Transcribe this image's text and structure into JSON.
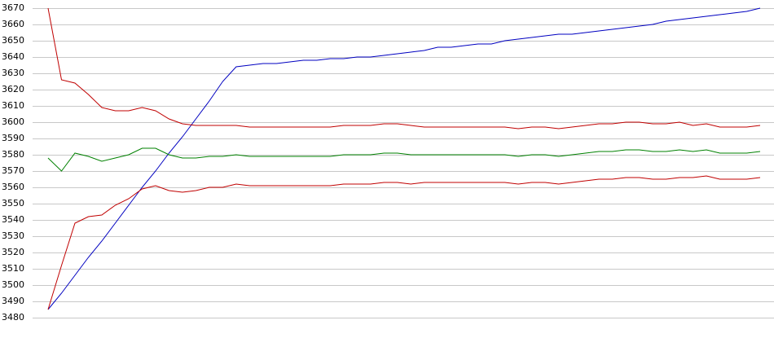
{
  "chart_data": {
    "type": "line",
    "ylim": [
      3480,
      3670
    ],
    "yticks": [
      3480,
      3490,
      3500,
      3510,
      3520,
      3530,
      3540,
      3550,
      3560,
      3570,
      3580,
      3590,
      3600,
      3610,
      3620,
      3630,
      3640,
      3650,
      3660,
      3670
    ],
    "grid": true,
    "series": [
      {
        "color": "#0000c0",
        "values": [
          3485,
          3495,
          3506,
          3517,
          3527,
          3538,
          3549,
          3560,
          3570,
          3581,
          3591,
          3602,
          3613,
          3625,
          3634,
          3635,
          3636,
          3636,
          3637,
          3638,
          3638,
          3639,
          3639,
          3640,
          3640,
          3641,
          3642,
          3643,
          3644,
          3646,
          3646,
          3647,
          3648,
          3648,
          3650,
          3651,
          3652,
          3653,
          3654,
          3654,
          3655,
          3656,
          3657,
          3658,
          3659,
          3660,
          3662,
          3663,
          3664,
          3665,
          3666,
          3667,
          3668,
          3670
        ]
      },
      {
        "color": "#c00000",
        "values": [
          3670,
          3626,
          3624,
          3617,
          3609,
          3607,
          3607,
          3609,
          3607,
          3602,
          3599,
          3598,
          3598,
          3598,
          3598,
          3597,
          3597,
          3597,
          3597,
          3597,
          3597,
          3597,
          3598,
          3598,
          3598,
          3599,
          3599,
          3598,
          3597,
          3597,
          3597,
          3597,
          3597,
          3597,
          3597,
          3596,
          3597,
          3597,
          3596,
          3597,
          3598,
          3599,
          3599,
          3600,
          3600,
          3599,
          3599,
          3600,
          3598,
          3599,
          3597,
          3597,
          3597,
          3598
        ]
      },
      {
        "color": "#008000",
        "values": [
          3578,
          3570,
          3581,
          3579,
          3576,
          3578,
          3580,
          3584,
          3584,
          3580,
          3578,
          3578,
          3579,
          3579,
          3580,
          3579,
          3579,
          3579,
          3579,
          3579,
          3579,
          3579,
          3580,
          3580,
          3580,
          3581,
          3581,
          3580,
          3580,
          3580,
          3580,
          3580,
          3580,
          3580,
          3580,
          3579,
          3580,
          3580,
          3579,
          3580,
          3581,
          3582,
          3582,
          3583,
          3583,
          3582,
          3582,
          3583,
          3582,
          3583,
          3581,
          3581,
          3581,
          3582
        ]
      },
      {
        "color": "#c00000",
        "values": [
          3485,
          3512,
          3538,
          3542,
          3543,
          3549,
          3553,
          3559,
          3561,
          3558,
          3557,
          3558,
          3560,
          3560,
          3562,
          3561,
          3561,
          3561,
          3561,
          3561,
          3561,
          3561,
          3562,
          3562,
          3562,
          3563,
          3563,
          3562,
          3563,
          3563,
          3563,
          3563,
          3563,
          3563,
          3563,
          3562,
          3563,
          3563,
          3562,
          3563,
          3564,
          3565,
          3565,
          3566,
          3566,
          3565,
          3565,
          3566,
          3566,
          3567,
          3565,
          3565,
          3565,
          3566
        ]
      }
    ]
  }
}
